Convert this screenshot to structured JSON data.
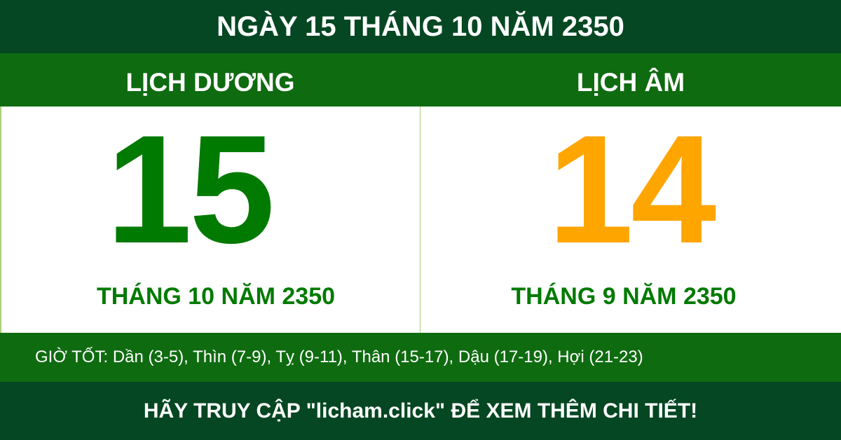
{
  "title": "NGÀY 15 THÁNG 10 NĂM 2350",
  "solar": {
    "label": "LỊCH DƯƠNG",
    "day": "15",
    "month_year": "THÁNG 10 NĂM 2350",
    "color": "#007a00"
  },
  "lunar": {
    "label": "LỊCH ÂM",
    "day": "14",
    "month_year": "THÁNG 9 NĂM 2350",
    "color": "#ffa500"
  },
  "good_hours": "GIỜ TỐT: Dần (3-5), Thìn (7-9), Tỵ (9-11), Thân (15-17), Dậu (17-19), Hợi (21-23)",
  "footer": "HÃY TRUY CẬP \"licham.click\" ĐỂ XEM THÊM CHI TIẾT!",
  "colors": {
    "dark_green": "#044722",
    "band_green": "#0f6b10"
  }
}
